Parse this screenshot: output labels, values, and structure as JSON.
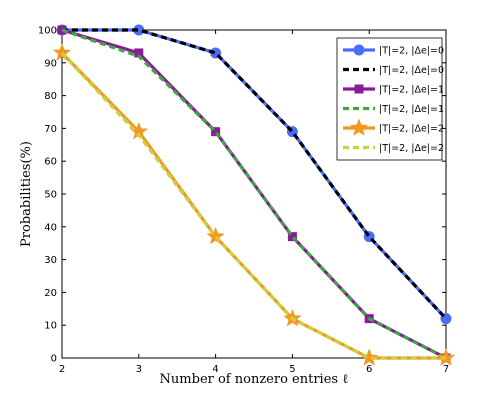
{
  "chart_data": {
    "type": "line",
    "xlabel": "Number of nonzero entries ℓ",
    "ylabel": "Probabilities(%)",
    "x": [
      2,
      3,
      4,
      5,
      6,
      7
    ],
    "xlim": [
      2,
      7
    ],
    "ylim": [
      0,
      100
    ],
    "xticks": [
      2,
      3,
      4,
      5,
      6,
      7
    ],
    "yticks": [
      0,
      10,
      20,
      30,
      40,
      50,
      60,
      70,
      80,
      90,
      100
    ],
    "grid": false,
    "legend_position": "top-right",
    "series": [
      {
        "name": "|T|=2, |Δe|=0",
        "values": [
          100,
          100,
          93,
          69,
          37,
          12
        ],
        "color": "#4a6cf7",
        "line": "solid",
        "marker": "circle"
      },
      {
        "name": "|T|=2, |Δe|=0",
        "values": [
          100,
          100,
          93,
          69,
          37,
          12
        ],
        "color": "#000000",
        "line": "dashed",
        "marker": "none"
      },
      {
        "name": "|T|=2, |Δe|=1",
        "values": [
          100,
          93,
          69,
          37,
          12,
          0
        ],
        "color": "#8b1a9b",
        "line": "solid",
        "marker": "square"
      },
      {
        "name": "|T|=2, |Δe|=1",
        "values": [
          100,
          92,
          69,
          37,
          12,
          0
        ],
        "color": "#3aa83a",
        "line": "dashed",
        "marker": "none"
      },
      {
        "name": "|T|=2, |Δe|=2",
        "values": [
          93,
          69,
          37,
          12,
          0,
          0
        ],
        "color": "#f5961e",
        "line": "solid",
        "marker": "star"
      },
      {
        "name": "|T|=2, |Δe|=2",
        "values": [
          93,
          68,
          37,
          12,
          0,
          0
        ],
        "color": "#c8d23a",
        "line": "dashed",
        "marker": "none"
      }
    ]
  }
}
